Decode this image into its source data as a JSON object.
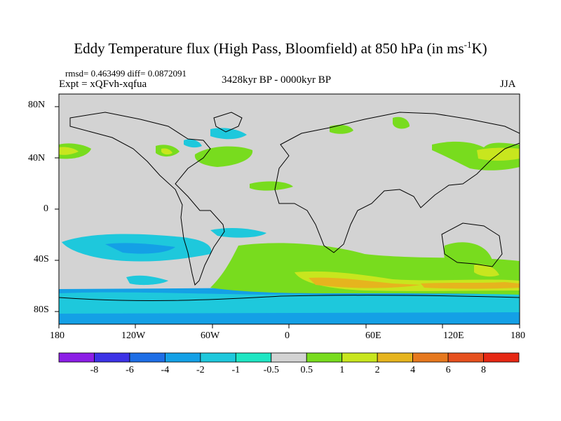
{
  "header": {
    "title_prefix": "Eddy Temperature flux (High Pass, Bloomfield) at 850 hPa (in ms",
    "title_sup": "-1",
    "title_suffix": "K)",
    "rmsd_line": "rmsd= 0.463499 diff= 0.0872091",
    "experiment": "Expt = xQFvh-xqfua",
    "period": "3428kyr BP - 0000kyr BP",
    "season": "JJA"
  },
  "map": {
    "lat_ticks": [
      "80N",
      "40N",
      "0",
      "40S",
      "80S"
    ],
    "lon_ticks": [
      "180",
      "120W",
      "60W",
      "0",
      "60E",
      "120E",
      "180"
    ],
    "background_color": "#d3d3d3",
    "coastline_color": "#000000"
  },
  "legend": {
    "labels": [
      "-8",
      "-6",
      "-4",
      "-2",
      "-1",
      "-0.5",
      "0.5",
      "1",
      "2",
      "4",
      "6",
      "8"
    ],
    "colors": [
      "#8c1ee6",
      "#3c32e6",
      "#1e6ee6",
      "#14a0e6",
      "#1ec8dc",
      "#1ee6c3",
      "#d3d3d3",
      "#78dc1e",
      "#c8e61e",
      "#e6b41e",
      "#e6781e",
      "#e6501e",
      "#e62814"
    ]
  }
}
